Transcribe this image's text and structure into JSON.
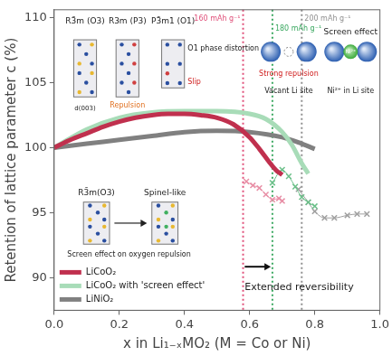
{
  "chart_data": {
    "type": "line",
    "x_label": "x in Li₁₋ₓMO₂ (M = Co or Ni)",
    "y_label": "Retention of lattice parameter c (%)",
    "xlim": [
      0,
      1
    ],
    "ylim": [
      87.5,
      110.6
    ],
    "xticks": [
      {
        "value": 0,
        "label": "0.0"
      },
      {
        "value": 0.2,
        "label": "0.2"
      },
      {
        "value": 0.4,
        "label": "0.4"
      },
      {
        "value": 0.6,
        "label": "0.6"
      },
      {
        "value": 0.8,
        "label": "0.8"
      },
      {
        "value": 1,
        "label": "1.0"
      }
    ],
    "yticks": [
      90,
      95,
      100,
      105,
      110
    ],
    "grid": false,
    "legend": "lower left",
    "series": [
      {
        "name": "LiCoO₂",
        "color": "#c0304e",
        "marker": "none",
        "line_style": "solid",
        "x": [
          0,
          0.05,
          0.1,
          0.15,
          0.2,
          0.25,
          0.3,
          0.35,
          0.4,
          0.45,
          0.5,
          0.55,
          0.6,
          0.63,
          0.66,
          0.68,
          0.7
        ],
        "values": [
          100,
          100.6,
          101.1,
          101.6,
          102,
          102.3,
          102.5,
          102.6,
          102.6,
          102.5,
          102.3,
          101.8,
          100.8,
          99.9,
          98.9,
          98.3,
          97.9
        ]
      },
      {
        "name": "LiCoO₂ with 'screen effect'",
        "color": "#a8dcb8",
        "marker": "none",
        "line_style": "solid",
        "x": [
          0,
          0.1,
          0.2,
          0.3,
          0.4,
          0.5,
          0.6,
          0.65,
          0.7,
          0.73,
          0.76,
          0.78
        ],
        "values": [
          100,
          101.4,
          102.3,
          102.7,
          102.8,
          102.8,
          102.6,
          102.2,
          101.2,
          100.2,
          98.8,
          98
        ]
      },
      {
        "name": "LiNiO₂",
        "color": "#808080",
        "marker": "none",
        "line_style": "solid",
        "x": [
          0,
          0.1,
          0.2,
          0.3,
          0.4,
          0.5,
          0.6,
          0.7,
          0.75,
          0.8
        ],
        "values": [
          100,
          100.3,
          100.6,
          100.9,
          101.2,
          101.3,
          101.2,
          100.8,
          100.4,
          99.9
        ]
      },
      {
        "color": "#e88fa6",
        "marker": "cross",
        "line_style": "solid",
        "x": [
          0.59,
          0.61,
          0.63,
          0.65,
          0.67,
          0.69,
          0.7
        ],
        "values": [
          97.4,
          97.1,
          96.9,
          96.4,
          96,
          96.1,
          95.9
        ]
      },
      {
        "color": "#6cc08a",
        "marker": "cross",
        "line_style": "solid",
        "x": [
          0.67,
          0.7,
          0.72,
          0.74,
          0.76,
          0.78,
          0.8
        ],
        "values": [
          97.3,
          98.3,
          97.8,
          97,
          96.2,
          95.8,
          95.5
        ]
      },
      {
        "color": "#a0a0a0",
        "marker": "cross",
        "line_style": "solid",
        "x": [
          0.75,
          0.78,
          0.8,
          0.83,
          0.86,
          0.9,
          0.93,
          0.96
        ],
        "values": [
          96.8,
          95.8,
          95.1,
          94.6,
          94.6,
          94.8,
          94.9,
          94.9
        ]
      }
    ],
    "reference_lines": [
      {
        "x": 0.58,
        "label": "160 mAh g⁻¹",
        "color": "#e0507a"
      },
      {
        "x": 0.67,
        "label": "180 mAh g⁻¹",
        "color": "#3aa860"
      },
      {
        "x": 0.76,
        "label": "200 mAh g⁻¹",
        "color": "#909090"
      }
    ],
    "annotations": [
      "R3̄m (O3)",
      "R3m (P3)",
      "P3̄m1 (O1)",
      "O1 phase distortion",
      "d(003)",
      "Repulsion",
      "Slip",
      "R3̄m(O3)",
      "Spinel-like",
      "Screen effect on oxygen repulsion",
      "Screen effect",
      "Strong repulsion",
      "Vacant Li site",
      "Ni²⁺ in Li site",
      "Ni²⁺",
      "Extended reversibility"
    ]
  }
}
